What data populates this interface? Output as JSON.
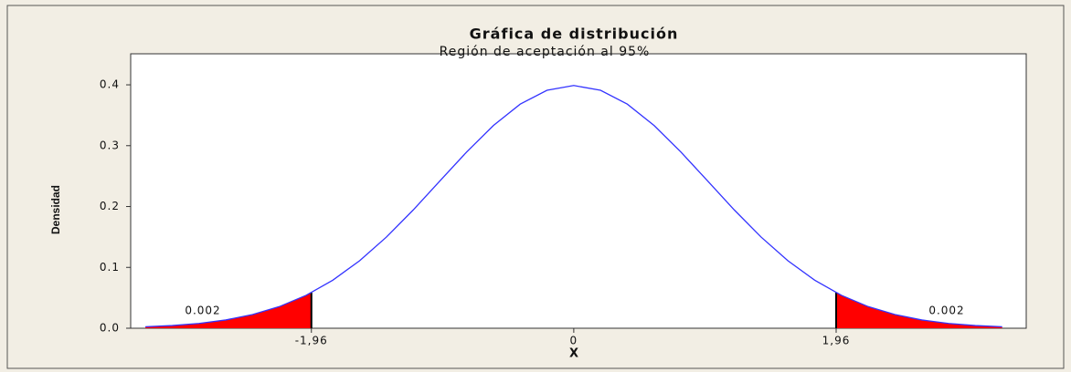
{
  "chart_data": {
    "type": "line",
    "title": "Gráfica de distribución",
    "subtitle": "Región de aceptación al 95%",
    "xlabel": "X",
    "ylabel": "Densidad",
    "series": [
      {
        "color": "#3333ff",
        "x": [
          -3.2,
          -3.0,
          -2.8,
          -2.6,
          -2.4,
          -2.2,
          -2.0,
          -1.8,
          -1.6,
          -1.4,
          -1.2,
          -1.0,
          -0.8,
          -0.6,
          -0.4,
          -0.2,
          0,
          0.2,
          0.4,
          0.6,
          0.8,
          1.0,
          1.2,
          1.4,
          1.6,
          1.8,
          2.0,
          2.2,
          2.4,
          2.6,
          2.8,
          3.0,
          3.2
        ],
        "values": [
          0.0024,
          0.0044,
          0.0079,
          0.0136,
          0.0224,
          0.0355,
          0.054,
          0.079,
          0.1109,
          0.1497,
          0.1942,
          0.242,
          0.2897,
          0.3332,
          0.3683,
          0.391,
          0.3989,
          0.391,
          0.3683,
          0.3332,
          0.2897,
          0.242,
          0.1942,
          0.1497,
          0.1109,
          0.079,
          0.054,
          0.0355,
          0.0224,
          0.0136,
          0.0079,
          0.0044,
          0.0024
        ]
      }
    ],
    "tails": [
      {
        "color": "#ff0000",
        "x": [
          -3.2,
          -3.0,
          -2.8,
          -2.6,
          -2.4,
          -2.2,
          -2.0,
          -1.96
        ],
        "values": [
          0.0024,
          0.0044,
          0.0079,
          0.0136,
          0.0224,
          0.0355,
          0.054,
          0.0584
        ]
      },
      {
        "color": "#ff0000",
        "x": [
          1.96,
          2.0,
          2.2,
          2.4,
          2.6,
          2.8,
          3.0,
          3.2
        ],
        "values": [
          0.0584,
          0.054,
          0.0355,
          0.0224,
          0.0136,
          0.0079,
          0.0044,
          0.0024
        ]
      }
    ],
    "annotations": [
      "0.002",
      "0.002"
    ],
    "xlim": [
      -3.31,
      3.38
    ],
    "ylim": [
      0,
      0.451
    ],
    "xticks": [
      {
        "value": -1.96,
        "label": "-1,96"
      },
      0,
      {
        "value": 1.96,
        "label": "1,96"
      }
    ],
    "yticks": [
      {
        "value": 0,
        "label": "0.0"
      },
      0.1,
      0.2,
      0.3,
      0.4
    ]
  }
}
